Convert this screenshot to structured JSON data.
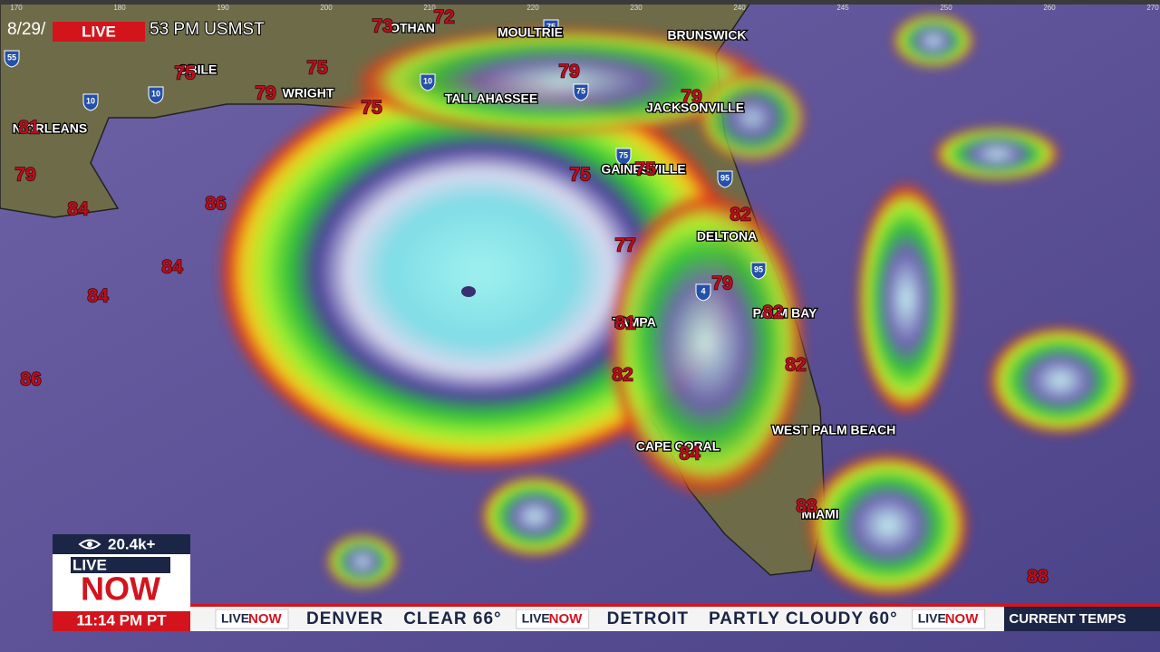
{
  "header": {
    "date": "8/29/",
    "live": "LIVE",
    "time": "53 PM USMST"
  },
  "scale_labels": [
    "170",
    "180",
    "190",
    "200",
    "210",
    "220",
    "230",
    "240",
    "245",
    "250",
    "260",
    "270"
  ],
  "cities": [
    "OTHAN",
    "MOULTRIE",
    "BRUNSWICK",
    "OBILE",
    "WRIGHT",
    "TALLAHASSEE",
    "JACKSONVILLE",
    "N ORLEANS",
    "GAINESVILLE",
    "DELTONA",
    "PALM BAY",
    "TAMPA",
    "WEST PALM BEACH",
    "CAPE CORAL",
    "MIAMI"
  ],
  "temperatures": [
    "73",
    "72",
    "75",
    "75",
    "79",
    "75",
    "79",
    "79",
    "81",
    "79",
    "84",
    "86",
    "84",
    "84",
    "75",
    "75",
    "77",
    "82",
    "79",
    "82",
    "81",
    "82",
    "82",
    "84",
    "88",
    "86"
  ],
  "highways": [
    "55",
    "10",
    "10",
    "10",
    "75",
    "75",
    "95",
    "95",
    "4",
    "75"
  ],
  "badge": {
    "viewers": "20.4k+",
    "live": "LIVE",
    "now": "NOW",
    "time": "11:14 PM PT"
  },
  "ticker": {
    "logo_live": "LIVE",
    "logo_now": "NOW",
    "items": [
      {
        "city": "DENVER",
        "conditions": "CLEAR 66°"
      },
      {
        "city": "DETROIT",
        "conditions": "PARTLY CLOUDY 60°"
      }
    ],
    "label": "CURRENT TEMPS"
  }
}
